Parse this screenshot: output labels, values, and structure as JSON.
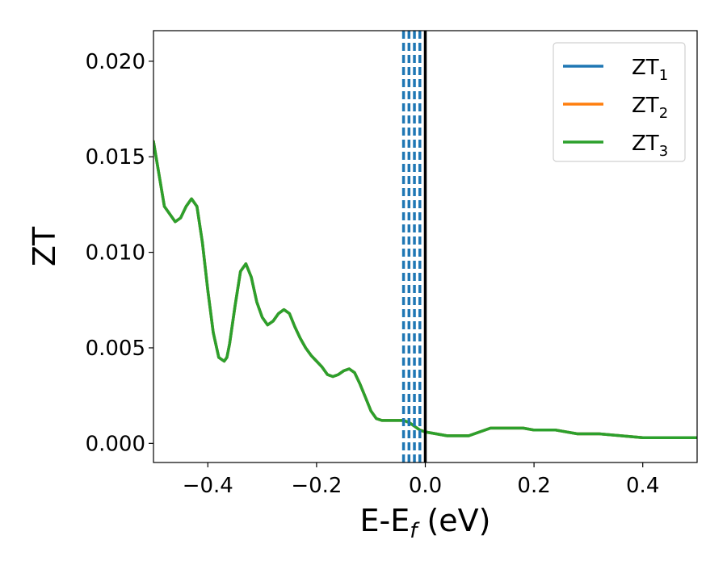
{
  "chart_data": {
    "type": "line",
    "xlabel": "E-E",
    "xlabel_sub": "f",
    "xlabel_unit": " (eV)",
    "ylabel": "ZT",
    "xlim": [
      -0.5,
      0.5
    ],
    "ylim": [
      -0.001,
      0.0216
    ],
    "xticks": [
      -0.4,
      -0.2,
      0.0,
      0.2,
      0.4
    ],
    "xtick_labels": [
      "−0.4",
      "−0.2",
      "0.0",
      "0.2",
      "0.4"
    ],
    "yticks": [
      0.0,
      0.005,
      0.01,
      0.015,
      0.02
    ],
    "ytick_labels": [
      "0.000",
      "0.005",
      "0.010",
      "0.015",
      "0.020"
    ],
    "legend_position": "top-right",
    "grid": false,
    "vlines_dashed": {
      "x": [
        -0.04,
        -0.03,
        -0.02,
        -0.01
      ],
      "color": "#1f77b4"
    },
    "vline_solid": {
      "x": 0.0,
      "color": "#000000"
    },
    "x": [
      -0.5,
      -0.48,
      -0.46,
      -0.45,
      -0.44,
      -0.43,
      -0.42,
      -0.41,
      -0.4,
      -0.39,
      -0.38,
      -0.37,
      -0.365,
      -0.36,
      -0.35,
      -0.34,
      -0.33,
      -0.32,
      -0.31,
      -0.3,
      -0.29,
      -0.28,
      -0.27,
      -0.26,
      -0.25,
      -0.24,
      -0.23,
      -0.22,
      -0.21,
      -0.2,
      -0.19,
      -0.18,
      -0.17,
      -0.16,
      -0.15,
      -0.14,
      -0.13,
      -0.12,
      -0.11,
      -0.1,
      -0.09,
      -0.08,
      -0.07,
      -0.06,
      -0.05,
      -0.04,
      -0.03,
      -0.02,
      -0.01,
      0.0,
      0.02,
      0.04,
      0.06,
      0.08,
      0.1,
      0.12,
      0.13,
      0.14,
      0.16,
      0.18,
      0.2,
      0.24,
      0.28,
      0.32,
      0.36,
      0.4,
      0.44,
      0.48,
      0.5
    ],
    "series": [
      {
        "name": "ZT",
        "sub": "1",
        "color": "#1f77b4",
        "values": [
          0.0158,
          0.0124,
          0.0116,
          0.0118,
          0.0124,
          0.0128,
          0.0124,
          0.0105,
          0.008,
          0.0058,
          0.0045,
          0.0043,
          0.0045,
          0.0052,
          0.0072,
          0.009,
          0.0094,
          0.0087,
          0.0074,
          0.0066,
          0.0062,
          0.0064,
          0.0068,
          0.007,
          0.0068,
          0.0061,
          0.0055,
          0.005,
          0.0046,
          0.0043,
          0.004,
          0.0036,
          0.0035,
          0.0036,
          0.0038,
          0.0039,
          0.0037,
          0.0031,
          0.0024,
          0.0017,
          0.0013,
          0.0012,
          0.0012,
          0.0012,
          0.0012,
          0.0012,
          0.0011,
          0.0009,
          0.0007,
          0.0006,
          0.0005,
          0.0004,
          0.0004,
          0.0004,
          0.0006,
          0.0008,
          0.0008,
          0.0008,
          0.0008,
          0.0008,
          0.0007,
          0.0007,
          0.0005,
          0.0005,
          0.0004,
          0.0003,
          0.0003,
          0.0003,
          0.0003
        ]
      },
      {
        "name": "ZT",
        "sub": "2",
        "color": "#ff7f0e",
        "values": [
          0.0158,
          0.0124,
          0.0116,
          0.0118,
          0.0124,
          0.0128,
          0.0124,
          0.0105,
          0.008,
          0.0058,
          0.0045,
          0.0043,
          0.0045,
          0.0052,
          0.0072,
          0.009,
          0.0094,
          0.0087,
          0.0074,
          0.0066,
          0.0062,
          0.0064,
          0.0068,
          0.007,
          0.0068,
          0.0061,
          0.0055,
          0.005,
          0.0046,
          0.0043,
          0.004,
          0.0036,
          0.0035,
          0.0036,
          0.0038,
          0.0039,
          0.0037,
          0.0031,
          0.0024,
          0.0017,
          0.0013,
          0.0012,
          0.0012,
          0.0012,
          0.0012,
          0.0012,
          0.0011,
          0.0009,
          0.0007,
          0.0006,
          0.0005,
          0.0004,
          0.0004,
          0.0004,
          0.0006,
          0.0008,
          0.0008,
          0.0008,
          0.0008,
          0.0008,
          0.0007,
          0.0007,
          0.0005,
          0.0005,
          0.0004,
          0.0003,
          0.0003,
          0.0003,
          0.0003
        ]
      },
      {
        "name": "ZT",
        "sub": "3",
        "color": "#2ca02c",
        "values": [
          0.0158,
          0.0124,
          0.0116,
          0.0118,
          0.0124,
          0.0128,
          0.0124,
          0.0105,
          0.008,
          0.0058,
          0.0045,
          0.0043,
          0.0045,
          0.0052,
          0.0072,
          0.009,
          0.0094,
          0.0087,
          0.0074,
          0.0066,
          0.0062,
          0.0064,
          0.0068,
          0.007,
          0.0068,
          0.0061,
          0.0055,
          0.005,
          0.0046,
          0.0043,
          0.004,
          0.0036,
          0.0035,
          0.0036,
          0.0038,
          0.0039,
          0.0037,
          0.0031,
          0.0024,
          0.0017,
          0.0013,
          0.0012,
          0.0012,
          0.0012,
          0.0012,
          0.0012,
          0.0011,
          0.0009,
          0.0007,
          0.0006,
          0.0005,
          0.0004,
          0.0004,
          0.0004,
          0.0006,
          0.0008,
          0.0008,
          0.0008,
          0.0008,
          0.0008,
          0.0007,
          0.0007,
          0.0005,
          0.0005,
          0.0004,
          0.0003,
          0.0003,
          0.0003,
          0.0003
        ]
      }
    ]
  }
}
